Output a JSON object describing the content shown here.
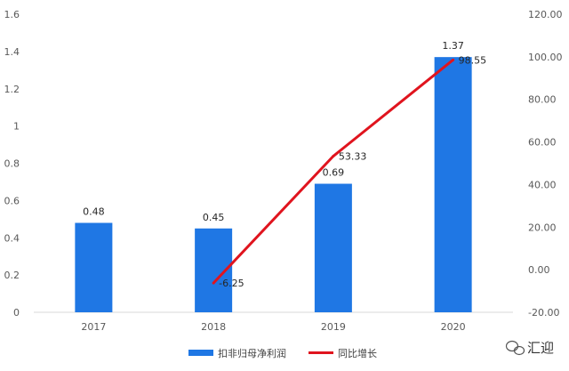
{
  "chart_data": {
    "type": "bar",
    "title": "",
    "categories": [
      "2017",
      "2018",
      "2019",
      "2020"
    ],
    "series": [
      {
        "name": "扣非归母净利润",
        "type": "bar",
        "axis": "left",
        "color": "#1f77e4",
        "values": [
          0.48,
          0.45,
          0.69,
          1.37
        ],
        "labels": [
          "0.48",
          "0.45",
          "0.69",
          "1.37"
        ]
      },
      {
        "name": "同比增长",
        "type": "line",
        "axis": "right",
        "color": "#e0141e",
        "values": [
          null,
          -6.25,
          53.33,
          98.55
        ],
        "labels": [
          "",
          "-6.25",
          "53.33",
          "98.55"
        ]
      }
    ],
    "y_left": {
      "ylim": [
        0,
        1.6
      ],
      "ticks": [
        "0",
        "0.2",
        "0.4",
        "0.6",
        "0.8",
        "1",
        "1.2",
        "1.4",
        "1.6"
      ]
    },
    "y_right": {
      "ylim": [
        -20,
        120
      ],
      "ticks": [
        "-20.00",
        "0.00",
        "20.00",
        "40.00",
        "60.00",
        "80.00",
        "100.00",
        "120.00"
      ]
    },
    "grid": false,
    "legend_position": "bottom"
  },
  "watermark": {
    "text": "汇迎",
    "icon": "wechat-icon"
  }
}
